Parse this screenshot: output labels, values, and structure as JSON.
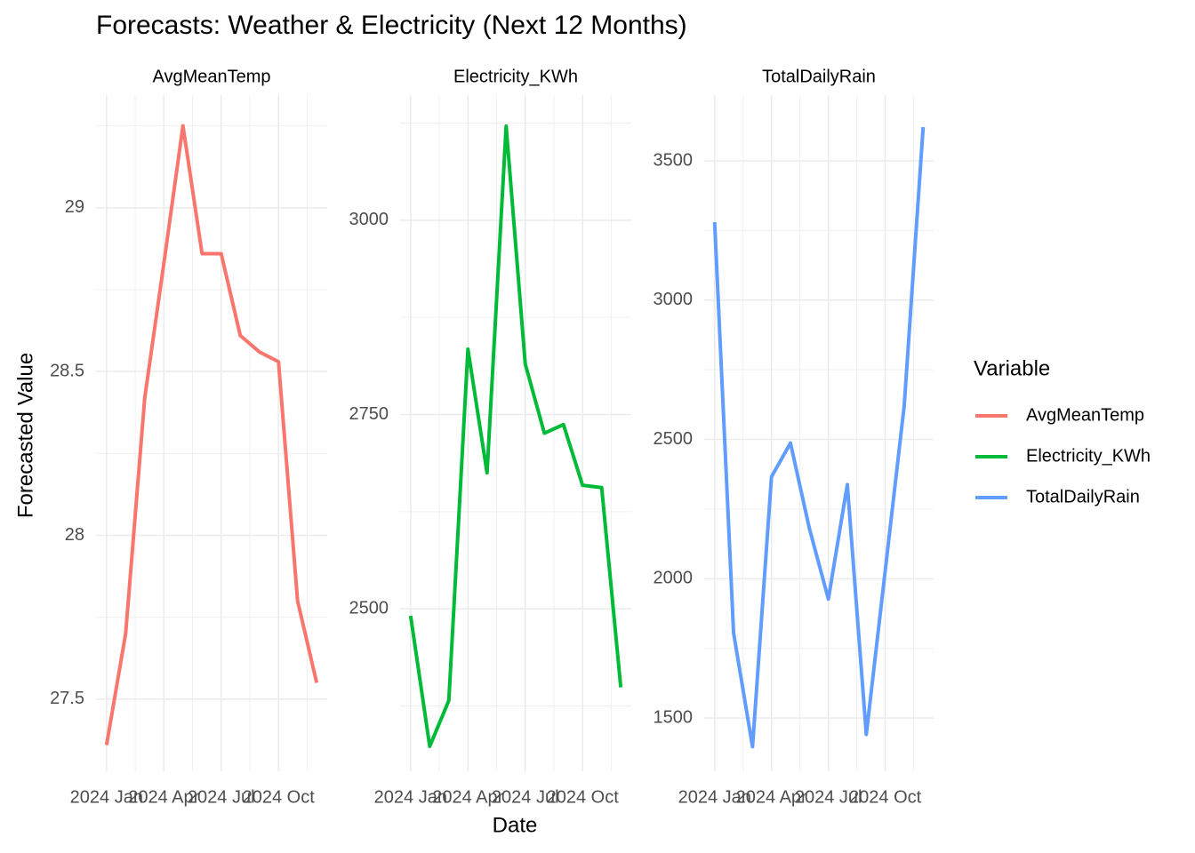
{
  "title": "Forecasts: Weather & Electricity (Next 12 Months)",
  "x_label": "Date",
  "y_label": "Forecasted Value",
  "legend_title": "Variable",
  "chart_data": [
    {
      "type": "line",
      "title": "AvgMeanTemp",
      "x": [
        "2024-01",
        "2024-02",
        "2024-03",
        "2024-04",
        "2024-05",
        "2024-06",
        "2024-07",
        "2024-08",
        "2024-09",
        "2024-10",
        "2024-11",
        "2024-12"
      ],
      "series": [
        {
          "name": "AvgMeanTemp",
          "color": "#f8766d",
          "values": [
            27.36,
            27.7,
            28.42,
            28.83,
            29.25,
            28.86,
            28.86,
            28.61,
            28.56,
            28.53,
            27.8,
            27.55
          ]
        }
      ],
      "xlim": [
        "2024-01",
        "2024-12"
      ],
      "xticks": [
        {
          "value": "2024-01",
          "label": "2024 Jan"
        },
        {
          "value": "2024-04",
          "label": "2024 Apr"
        },
        {
          "value": "2024-07",
          "label": "2024 Jul"
        },
        {
          "value": "2024-10",
          "label": "2024 Oct"
        }
      ],
      "ylim": [
        27.28,
        29.344
      ],
      "yticks": [
        27.5,
        28.0,
        28.5,
        29.0
      ],
      "grid": true
    },
    {
      "type": "line",
      "title": "Electricity_KWh",
      "x": [
        "2024-01",
        "2024-02",
        "2024-03",
        "2024-04",
        "2024-05",
        "2024-06",
        "2024-07",
        "2024-08",
        "2024-09",
        "2024-10",
        "2024-11",
        "2024-12"
      ],
      "series": [
        {
          "name": "Electricity_KWh",
          "color": "#00ba38",
          "values": [
            2491,
            2323,
            2382,
            2834,
            2675,
            3121,
            2815,
            2726,
            2737,
            2659,
            2656,
            2399
          ]
        }
      ],
      "xlim": [
        "2024-01",
        "2024-12"
      ],
      "xticks": [
        {
          "value": "2024-01",
          "label": "2024 Jan"
        },
        {
          "value": "2024-04",
          "label": "2024 Apr"
        },
        {
          "value": "2024-07",
          "label": "2024 Jul"
        },
        {
          "value": "2024-10",
          "label": "2024 Oct"
        }
      ],
      "ylim": [
        2291,
        3161
      ],
      "yticks": [
        2500,
        2750,
        3000
      ],
      "grid": true
    },
    {
      "type": "line",
      "title": "TotalDailyRain",
      "x": [
        "2024-01",
        "2024-02",
        "2024-03",
        "2024-04",
        "2024-05",
        "2024-06",
        "2024-07",
        "2024-08",
        "2024-09",
        "2024-10",
        "2024-11",
        "2024-12"
      ],
      "series": [
        {
          "name": "TotalDailyRain",
          "color": "#619cff",
          "values": [
            3280,
            1805,
            1397,
            2366,
            2487,
            2180,
            1927,
            2338,
            1441,
            2030,
            2621,
            3621
          ]
        }
      ],
      "xlim": [
        "2024-01",
        "2024-12"
      ],
      "xticks": [
        {
          "value": "2024-01",
          "label": "2024 Jan"
        },
        {
          "value": "2024-04",
          "label": "2024 Apr"
        },
        {
          "value": "2024-07",
          "label": "2024 Jul"
        },
        {
          "value": "2024-10",
          "label": "2024 Oct"
        }
      ],
      "ylim": [
        1309,
        3736
      ],
      "yticks": [
        1500,
        2000,
        2500,
        3000,
        3500
      ],
      "grid": true
    }
  ]
}
